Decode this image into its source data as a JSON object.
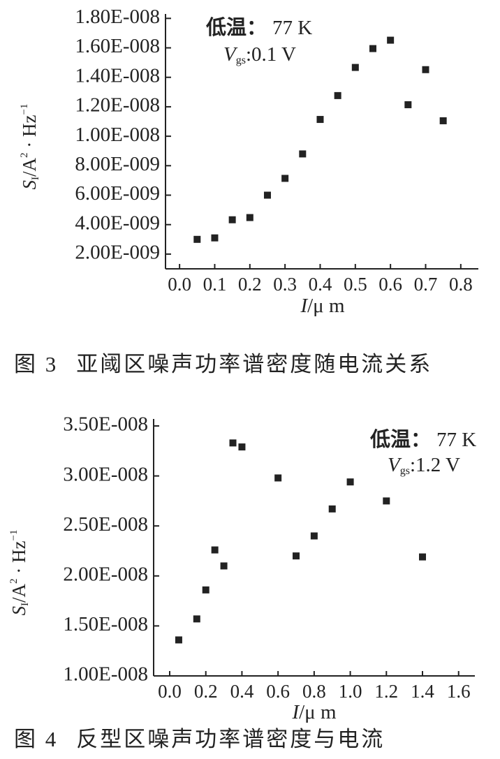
{
  "chart_data": [
    {
      "type": "scatter",
      "annotations": [
        [
          "低温：",
          "77 K"
        ],
        [
          "V",
          "gs",
          ":0.1 V"
        ]
      ],
      "xlabel": [
        "I",
        "/μ m"
      ],
      "ylabel": [
        "S",
        "I",
        "/A",
        "2",
        " · Hz",
        "−1"
      ],
      "caption": [
        "图 3",
        "亚阈区噪声功率谱密度随电流关系"
      ],
      "x": [
        0.05,
        0.1,
        0.15,
        0.2,
        0.25,
        0.3,
        0.35,
        0.4,
        0.45,
        0.5,
        0.55,
        0.6,
        0.65,
        0.7,
        0.75
      ],
      "values": [
        3e-09,
        3.1e-09,
        4.33e-09,
        4.48e-09,
        6e-09,
        7.14e-09,
        8.8e-09,
        1.114e-08,
        1.276e-08,
        1.467e-08,
        1.595e-08,
        1.652e-08,
        1.214e-08,
        1.452e-08,
        1.105e-08
      ],
      "color": "#222222",
      "xlim": [
        -0.04,
        0.85
      ],
      "ylim": [
        1e-09,
        1.83e-08
      ],
      "xticks": [
        {
          "value": 0,
          "label": "0.0"
        },
        0.1,
        0.2,
        0.3,
        0.4,
        0.5,
        0.6,
        0.7,
        0.8
      ],
      "yticks": [
        {
          "value": 2e-09,
          "label": "2.00E-009"
        },
        {
          "value": 4e-09,
          "label": "4.00E-009"
        },
        {
          "value": 6e-09,
          "label": "6.00E-009"
        },
        {
          "value": 8e-09,
          "label": "8.00E-009"
        },
        {
          "value": 1e-08,
          "label": "1.00E-008"
        },
        {
          "value": 1.2e-08,
          "label": "1.20E-008"
        },
        {
          "value": 1.4e-08,
          "label": "1.40E-008"
        },
        {
          "value": 1.6e-08,
          "label": "1.60E-008"
        },
        {
          "value": 1.8e-08,
          "label": "1.80E-008"
        }
      ]
    },
    {
      "type": "scatter",
      "annotations": [
        [
          "低温：",
          "77 K"
        ],
        [
          "V",
          "gs",
          ":1.2 V"
        ]
      ],
      "xlabel": [
        "I",
        "/μ m"
      ],
      "ylabel": [
        "S",
        "I",
        "/A",
        "2",
        " · Hz",
        "−1"
      ],
      "caption": [
        "图 4",
        "反型区噪声功率谱密度与电流"
      ],
      "x": [
        0.05,
        0.15,
        0.2,
        0.25,
        0.3,
        0.35,
        0.4,
        0.6,
        0.7,
        0.8,
        0.9,
        1.0,
        1.2,
        1.4
      ],
      "values": [
        1.36e-08,
        1.57e-08,
        1.86e-08,
        2.26e-08,
        2.1e-08,
        3.33e-08,
        3.29e-08,
        2.98e-08,
        2.2e-08,
        2.4e-08,
        2.67e-08,
        2.94e-08,
        2.75e-08,
        2.19e-08
      ],
      "color": "#222222",
      "xlim": [
        -0.089,
        1.69
      ],
      "ylim": [
        1e-08,
        3.57e-08
      ],
      "xticks": [
        {
          "value": 0,
          "label": "0.0"
        },
        0.2,
        0.4,
        0.6,
        0.8,
        {
          "value": 1,
          "label": "1.0"
        },
        1.2,
        1.4,
        1.6
      ],
      "yticks": [
        {
          "value": 1e-08,
          "label": "1.00E-008"
        },
        {
          "value": 1.5e-08,
          "label": "1.50E-008"
        },
        {
          "value": 2e-08,
          "label": "2.00E-008"
        },
        {
          "value": 2.5e-08,
          "label": "2.50E-008"
        },
        {
          "value": 3e-08,
          "label": "3.00E-008"
        },
        {
          "value": 3.5e-08,
          "label": "3.50E-008"
        }
      ]
    }
  ]
}
